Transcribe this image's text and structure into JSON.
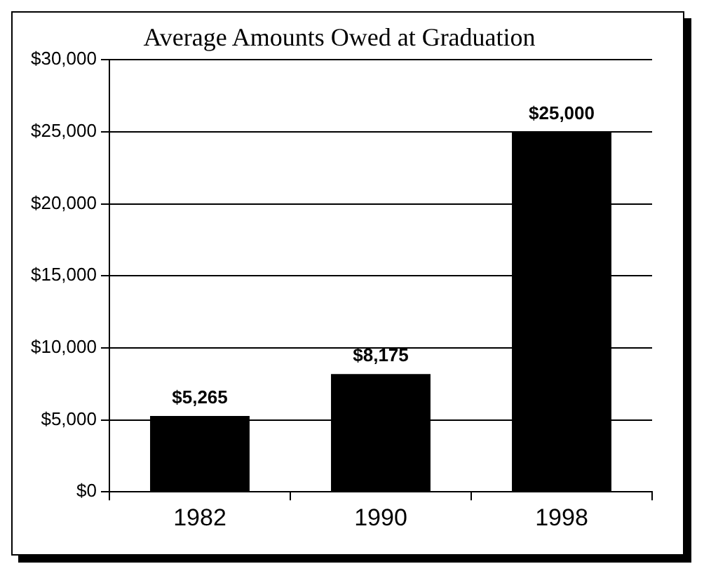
{
  "chart_data": {
    "type": "bar",
    "title": "Average Amounts Owed at Graduation",
    "categories": [
      "1982",
      "1990",
      "1998"
    ],
    "values": [
      5265,
      8175,
      25000
    ],
    "value_labels": [
      "$5,265",
      "$8,175",
      "$25,000"
    ],
    "color": "#000000",
    "ylim": [
      0,
      30000
    ],
    "yticks": [
      {
        "value": 0,
        "label": "$0"
      },
      {
        "value": 5000,
        "label": "$5,000"
      },
      {
        "value": 10000,
        "label": "$10,000"
      },
      {
        "value": 15000,
        "label": "$15,000"
      },
      {
        "value": 20000,
        "label": "$20,000"
      },
      {
        "value": 25000,
        "label": "$25,000"
      },
      {
        "value": 30000,
        "label": "$30,000"
      }
    ],
    "grid": "y",
    "legend": false
  }
}
